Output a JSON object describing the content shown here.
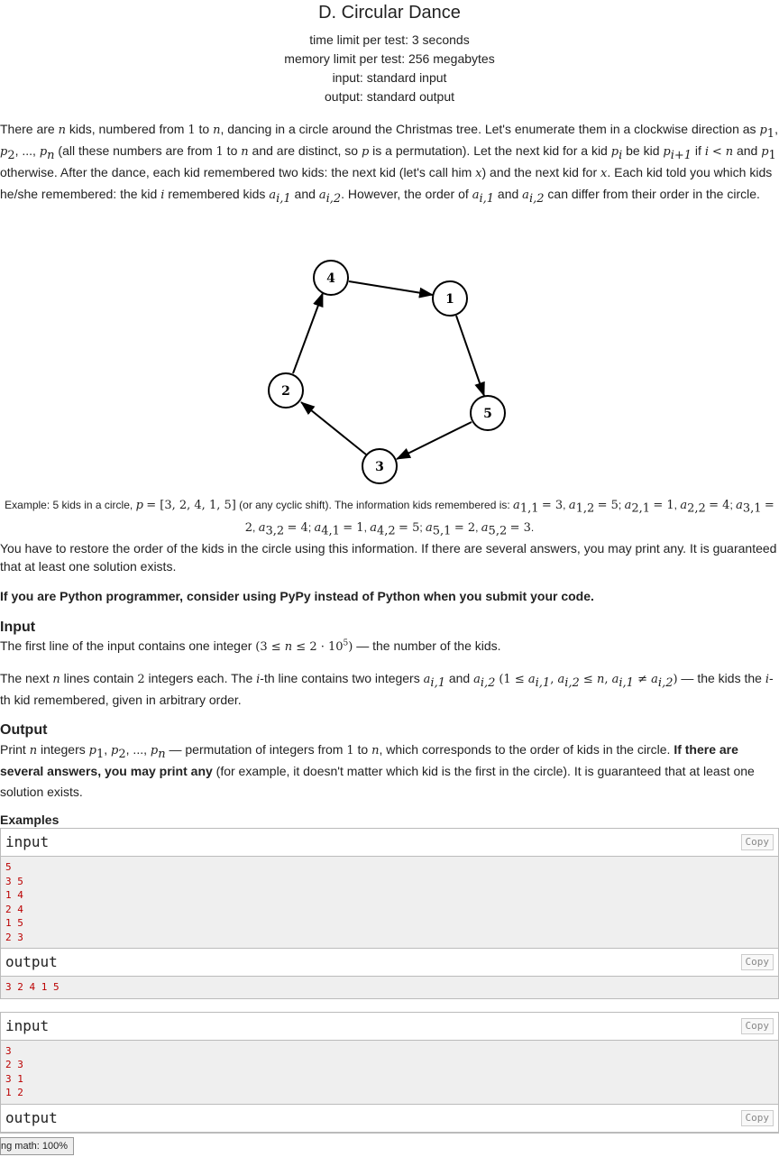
{
  "problem": {
    "title": "D. Circular Dance",
    "time_limit": "time limit per test: 3 seconds",
    "memory_limit": "memory limit per test: 256 megabytes",
    "input": "input: standard input",
    "output": "output: standard output"
  },
  "statement": {
    "t1": "There are ",
    "t2": " kids, numbered from ",
    "t3": " to ",
    "t4": ", dancing in a circle around the Christmas tree. Let's enumerate them in a clockwise direction as ",
    "t5": " (all these numbers are from ",
    "t6": " and are distinct, so ",
    "t7": " is a permutation). Let the next kid for a kid ",
    "t8": " be kid ",
    "t9": " if ",
    "t10": " and ",
    "t11": " otherwise. After the dance, each kid remembered two kids: the next kid (let's call him ",
    "t12": ") and the next kid for ",
    "t13": ". Each kid told you which kids he/she remembered: the kid ",
    "t14": " remembered kids ",
    "t15": ". However, the order of ",
    "t16": " can differ from their order in the circle."
  },
  "figure": {
    "nodes": [
      "4",
      "1",
      "2",
      "5",
      "3"
    ],
    "caption_a": "Example: 5 kids in a circle, ",
    "caption_b": " (or any cyclic shift). The information kids remembered is: "
  },
  "after_fig": "You have to restore the order of the kids in the circle using this information. If there are several answers, you may print any. It is guaranteed that at least one solution exists.",
  "pypy_note": "If you are Python programmer, consider using PyPy instead of Python when you submit your code.",
  "input_section": {
    "title": "Input",
    "line1a": "The first line of the input contains one integer ",
    "line1b": " — the number of the kids.",
    "line2a": "The next ",
    "line2b": " lines contain ",
    "line2c": " integers each. The ",
    "line2d": "-th line contains two integers ",
    "line2e": " — the kids the ",
    "line2f": "-th kid remembered, given in arbitrary order."
  },
  "output_section": {
    "title": "Output",
    "a": "Print ",
    "b": " integers ",
    "c": " — permutation of integers from ",
    "d": ", which corresponds to the order of kids in the circle. ",
    "bold": "If there are several answers, you may print any",
    "e": " (for example, it doesn't matter which kid is the first in the circle). It is guaranteed that at least one solution exists."
  },
  "examples": {
    "title": "Examples",
    "input_label": "input",
    "output_label": "output",
    "copy_label": "Copy",
    "ex1_input": "5\n3 5\n1 4\n2 4\n1 5\n2 3",
    "ex1_output": "3 2 4 1 5",
    "ex2_input": "3\n2 3\n3 1\n1 2"
  },
  "zoom_status": "ng math: 100%"
}
